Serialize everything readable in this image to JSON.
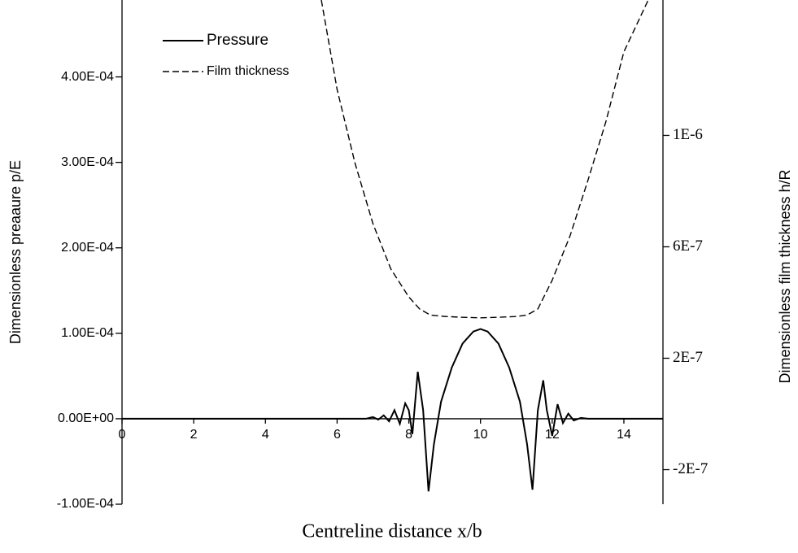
{
  "chart_data": {
    "type": "line",
    "xlabel": "Centreline distance x/b",
    "ylabel": "Dimensionless preaaure p/E",
    "y2label": "Dimensionless film thickness h/R",
    "xlim": [
      0,
      15.09
    ],
    "xticks": [
      0,
      2,
      4,
      6,
      8,
      10,
      12,
      14
    ],
    "ylim": [
      -0.0001,
      0.00049
    ],
    "yticks": [
      {
        "value": -0.0001,
        "label": "-1.00E-04"
      },
      {
        "value": 0,
        "label": "0.00E+00"
      },
      {
        "value": 0.0001,
        "label": "1.00E-04"
      },
      {
        "value": 0.0002,
        "label": "2.00E-04"
      },
      {
        "value": 0.0003,
        "label": "3.00E-04"
      },
      {
        "value": 0.0004,
        "label": "4.00E-04"
      }
    ],
    "y2lim": [
      -3.24e-07,
      1.486e-06
    ],
    "y2ticks": [
      {
        "value": -2e-07,
        "label": "-2E-7"
      },
      {
        "value": 2e-07,
        "label": "2E-7"
      },
      {
        "value": 6e-07,
        "label": "6E-7"
      },
      {
        "value": 1e-06,
        "label": "1E-6"
      }
    ],
    "legend": "upper left",
    "series": [
      {
        "name": "Pressure",
        "color": "#000000",
        "style": "solid",
        "x": [
          0,
          6,
          6.8,
          7.0,
          7.15,
          7.3,
          7.45,
          7.6,
          7.75,
          7.9,
          8.0,
          8.1,
          8.25,
          8.4,
          8.55,
          8.7,
          8.9,
          9.2,
          9.5,
          9.8,
          10.0,
          10.2,
          10.5,
          10.8,
          11.1,
          11.3,
          11.45,
          11.6,
          11.75,
          11.85,
          12.0,
          12.15,
          12.3,
          12.45,
          12.6,
          12.8,
          13.0,
          15.09
        ],
        "values": [
          0,
          0,
          0,
          2e-06,
          -1e-06,
          4e-06,
          -3e-06,
          1e-05,
          -6e-06,
          1.8e-05,
          1e-05,
          -1.8e-05,
          5.5e-05,
          1e-05,
          -8.5e-05,
          -3e-05,
          2e-05,
          6e-05,
          8.8e-05,
          0.000102,
          0.000105,
          0.000102,
          8.8e-05,
          6e-05,
          2e-05,
          -3e-05,
          -8.3e-05,
          1e-05,
          4.5e-05,
          1e-05,
          -2e-05,
          1.7e-05,
          -5e-06,
          6e-06,
          -2e-06,
          1e-06,
          0,
          0
        ]
      },
      {
        "name": "Film thickness",
        "color": "#000000",
        "style": "dashdot",
        "axis": "y2",
        "x": [
          5.56,
          6.0,
          6.5,
          7.0,
          7.5,
          8.0,
          8.3,
          8.6,
          9.0,
          9.5,
          10.0,
          10.5,
          11.0,
          11.3,
          11.6,
          12.0,
          12.5,
          13.0,
          13.5,
          14.0,
          14.68
        ],
        "values": [
          1.486e-06,
          1.165e-06,
          9e-07,
          6.83e-07,
          5.2e-07,
          4.2e-07,
          3.77e-07,
          3.55e-07,
          3.5e-07,
          3.47e-07,
          3.45e-07,
          3.47e-07,
          3.5e-07,
          3.55e-07,
          3.77e-07,
          4.8e-07,
          6.4e-07,
          8.4e-07,
          1.05e-06,
          1.3e-06,
          1.486e-06
        ]
      }
    ]
  }
}
